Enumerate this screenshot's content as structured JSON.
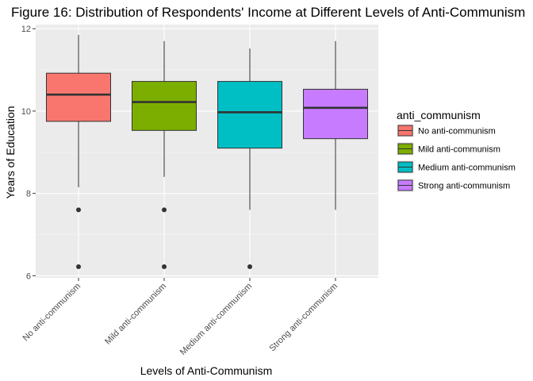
{
  "chart_data": {
    "type": "boxplot",
    "title": "Figure 16: Distribution of Respondents' Income at Different Levels of Anti-Communism",
    "xlabel": "Levels of Anti-Communism",
    "ylabel": "Years of Education",
    "ylim": [
      5.95,
      12.1
    ],
    "yticks": [
      6,
      8,
      10,
      12
    ],
    "grid": true,
    "legend_position": "right",
    "legend_title": "anti_communism",
    "categories": [
      "No anti-communism",
      "Mild anti-communism",
      "Medium anti-communism",
      "Strong anti-communism"
    ],
    "series": [
      {
        "name": "No anti-communism",
        "color": "#F8766D",
        "whisker_low": 8.15,
        "q1": 9.75,
        "median": 10.4,
        "q3": 10.92,
        "whisker_high": 11.85,
        "outliers": [
          7.6,
          6.22
        ]
      },
      {
        "name": "Mild anti-communism",
        "color": "#7CAE00",
        "whisker_low": 8.4,
        "q1": 9.53,
        "median": 10.22,
        "q3": 10.72,
        "whisker_high": 11.7,
        "outliers": [
          7.6,
          6.22
        ]
      },
      {
        "name": "Medium anti-communism",
        "color": "#00BFC4",
        "whisker_low": 7.6,
        "q1": 9.1,
        "median": 9.97,
        "q3": 10.72,
        "whisker_high": 11.52,
        "outliers": [
          6.22
        ]
      },
      {
        "name": "Strong anti-communism",
        "color": "#C77CFF",
        "whisker_low": 7.6,
        "q1": 9.33,
        "median": 10.08,
        "q3": 10.53,
        "whisker_high": 11.7,
        "outliers": []
      }
    ]
  }
}
